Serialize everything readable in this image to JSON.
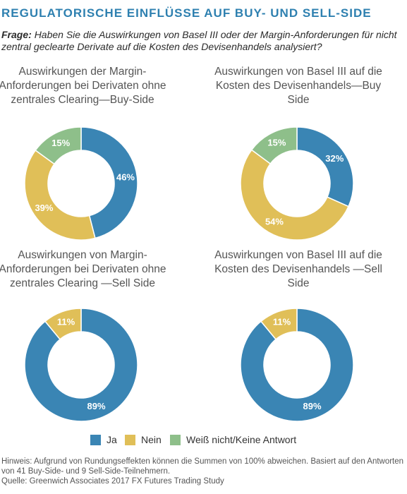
{
  "header": {
    "title": "REGULATORISCHE EINFLÜSSE AUF BUY- UND SELL-SIDE",
    "question_label": "Frage:",
    "question_text": "Haben Sie die Auswirkungen von Basel III oder der Margin-Anforderungen für nicht zentral geclearte Derivate auf die Kosten des Devisenhandels analysiert?"
  },
  "colors": {
    "ja": "#3a85b4",
    "nein": "#e0bf58",
    "weiss_nicht": "#8ebf8a"
  },
  "chart_data": [
    {
      "type": "pie",
      "title": "Auswirkungen der Margin-Anforderungen bei Derivaten ohne zentrales Clearing—Buy-Side",
      "categories": [
        "Ja",
        "Nein",
        "Weiß nicht/Keine Antwort"
      ],
      "values": [
        46,
        39,
        15
      ],
      "labels": [
        "46%",
        "39%",
        "15%"
      ]
    },
    {
      "type": "pie",
      "title": "Auswirkungen von Basel III auf die Kosten des Devisenhandels—Buy Side",
      "categories": [
        "Ja",
        "Nein",
        "Weiß nicht/Keine Antwort"
      ],
      "values": [
        32,
        54,
        15
      ],
      "labels": [
        "32%",
        "54%",
        "15%"
      ]
    },
    {
      "type": "pie",
      "title": "Auswirkungen von Margin-Anforderungen bei Derivaten ohne zentrales Clearing —Sell Side",
      "categories": [
        "Ja",
        "Nein"
      ],
      "values": [
        89,
        11
      ],
      "labels": [
        "89%",
        "11%"
      ]
    },
    {
      "type": "pie",
      "title": "Auswirkungen von Basel III auf die Kosten des Devisenhandels —Sell Side",
      "categories": [
        "Ja",
        "Nein"
      ],
      "values": [
        89,
        11
      ],
      "labels": [
        "89%",
        "11%"
      ]
    }
  ],
  "legend": [
    {
      "label": "Ja",
      "color": "#3a85b4"
    },
    {
      "label": "Nein",
      "color": "#e0bf58"
    },
    {
      "label": "Weiß nicht/Keine Antwort",
      "color": "#8ebf8a"
    }
  ],
  "footer": {
    "note": "Hinweis: Aufgrund von Rundungseffekten können die Summen von 100% abweichen. Basiert auf den Antworten von 41 Buy-Side- und 9 Sell-Side-Teilnehmern.",
    "source": "Quelle: Greenwich Associates 2017 FX Futures Trading Study"
  }
}
